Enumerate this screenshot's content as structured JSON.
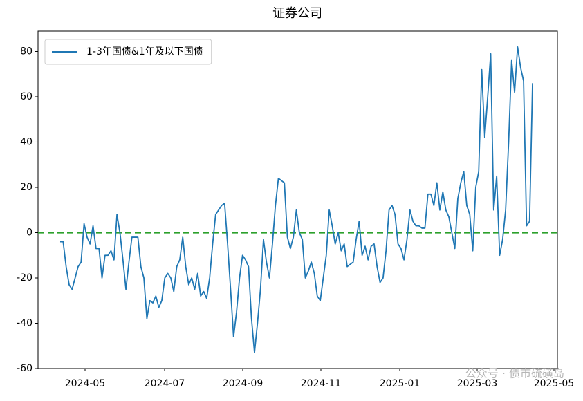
{
  "chart_data": {
    "type": "line",
    "title": "证券公司",
    "categories": [
      null,
      null,
      null,
      null,
      null,
      null,
      null,
      null,
      null,
      null,
      null,
      null,
      null,
      null,
      null,
      null,
      null,
      null,
      null,
      null,
      null,
      null,
      null,
      null,
      null,
      null,
      null,
      null,
      null,
      null,
      null,
      null,
      null,
      null,
      null,
      null,
      null,
      null,
      null,
      null,
      null,
      null,
      null,
      null,
      null,
      null,
      null,
      null,
      null,
      null,
      null,
      null,
      null,
      null,
      null,
      null,
      null,
      null,
      null,
      null,
      null,
      null,
      null,
      null,
      null,
      null,
      null,
      null,
      null,
      null,
      null,
      null,
      null,
      null,
      null,
      null,
      null,
      null,
      null,
      null,
      null,
      null,
      null,
      null,
      null,
      null,
      null,
      null,
      null,
      null,
      null,
      null,
      null,
      null,
      null,
      null,
      null,
      null,
      null,
      null,
      null,
      null,
      null,
      null,
      null,
      null,
      null,
      null,
      null,
      null,
      null,
      null,
      null,
      null,
      null,
      null,
      null,
      null,
      null,
      null,
      null,
      null,
      null,
      null,
      null,
      null,
      null,
      null,
      null,
      null,
      null,
      null,
      null,
      null,
      null,
      null,
      null,
      null,
      null,
      null,
      null,
      null,
      null,
      null,
      null,
      null,
      null,
      null,
      null,
      null,
      null,
      null,
      null,
      null,
      null,
      null,
      null,
      null,
      null
    ],
    "series": [
      {
        "name": "1-3年国债&1年及以下国债",
        "color": "#1f77b4",
        "values": [
          -4,
          -4,
          -15,
          -23,
          -25,
          -20,
          -15,
          -13,
          4,
          -2,
          -5,
          3,
          -7,
          -7,
          -20,
          -10,
          -10,
          -8,
          -12,
          8,
          0,
          -12,
          -25,
          -13,
          -2,
          -2,
          -2,
          -15,
          -20,
          -38,
          -30,
          -31,
          -28,
          -33,
          -30,
          -20,
          -18,
          -20,
          -26,
          -15,
          -12,
          -2,
          -15,
          -23,
          -20,
          -25,
          -18,
          -28,
          -26,
          -29,
          -20,
          -5,
          8,
          10,
          12,
          13,
          -5,
          -25,
          -46,
          -35,
          -20,
          -10,
          -12,
          -15,
          -38,
          -53,
          -40,
          -25,
          -3,
          -13,
          -20,
          -5,
          12,
          24,
          23,
          22,
          -2,
          -7,
          -2,
          10,
          0,
          -3,
          -20,
          -17,
          -13,
          -18,
          -28,
          -30,
          -20,
          -10,
          10,
          3,
          -5,
          0,
          -8,
          -5,
          -15,
          -14,
          -13,
          -3,
          5,
          -10,
          -6,
          -12,
          -6,
          -5,
          -15,
          -22,
          -20,
          -8,
          10,
          12,
          8,
          -5,
          -7,
          -12,
          -3,
          10,
          5,
          3,
          3,
          2,
          2,
          17,
          17,
          12,
          22,
          10,
          18,
          10,
          7,
          0,
          -7,
          15,
          22,
          27,
          12,
          8,
          -8,
          20,
          27,
          72,
          42,
          60,
          79,
          10,
          25,
          -10,
          -3,
          10,
          40,
          76,
          62,
          82,
          73,
          67,
          3,
          5,
          66
        ]
      }
    ],
    "xlim": [
      -7.4,
      166.32
    ],
    "xticks": [
      {
        "value": 8.33,
        "label": "2024-05"
      },
      {
        "value": 34.93,
        "label": "2024-07"
      },
      {
        "value": 61.07,
        "label": "2024-09"
      },
      {
        "value": 87.21,
        "label": "2024-11"
      },
      {
        "value": 113.58,
        "label": "2025-01"
      },
      {
        "value": 139.49,
        "label": "2025-03"
      },
      {
        "value": 165.16,
        "label": "2025-05"
      }
    ],
    "ylim": [
      -60,
      89
    ],
    "yticks": [
      -60,
      -40,
      -20,
      0,
      20,
      40,
      60,
      80
    ],
    "reference_line": {
      "y": 0,
      "color": "#2ca02c",
      "style": "dashed"
    },
    "legend": "upper left",
    "watermark": "公众号 · 债市硫磺岛"
  }
}
